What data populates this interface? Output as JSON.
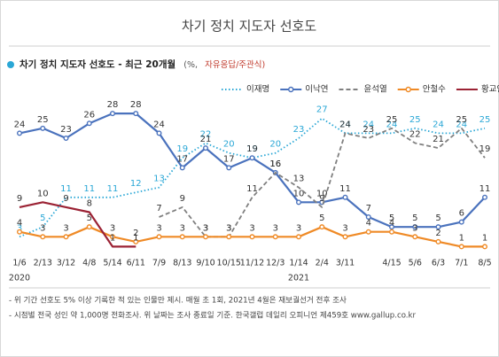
{
  "chart_data": {
    "type": "line",
    "title": "차기 정치 지도자 선호도",
    "subtitle": "차기 정치 지도자 선호도 - 최근 20개월",
    "subtitle_unit": "(%,",
    "subtitle_note": "자유응답/주관식)",
    "categories": [
      "1/6",
      "2/13",
      "3/12",
      "4/8",
      "5/14",
      "6/11",
      "7/9",
      "8/13",
      "9/10",
      "10/15",
      "11/12",
      "12/3",
      "1/14",
      "2/4",
      "3/11",
      null,
      "4/15",
      "5/6",
      "6/3",
      "7/1",
      "8/5"
    ],
    "year_labels": [
      "2020",
      null,
      null,
      null,
      null,
      null,
      null,
      null,
      null,
      null,
      null,
      null,
      "2021",
      null,
      null,
      null,
      null,
      null,
      null,
      null,
      null
    ],
    "ylim": [
      0,
      30
    ],
    "series": [
      {
        "name": "이재명",
        "color": "#2aa7d6",
        "dash": "dotted",
        "markers": false,
        "values": [
          3,
          5,
          11,
          11,
          11,
          12,
          13,
          19,
          22,
          20,
          19,
          20,
          23,
          27,
          24,
          24,
          24,
          25,
          24,
          24,
          25
        ]
      },
      {
        "name": "이낙연",
        "color": "#4a72bd",
        "dash": "solid",
        "markers": true,
        "values": [
          24,
          25,
          23,
          26,
          28,
          28,
          24,
          17,
          21,
          17,
          19,
          16,
          10,
          10,
          11,
          7,
          5,
          5,
          5,
          6,
          11
        ]
      },
      {
        "name": "윤석열",
        "color": "#808080",
        "dash": "dashed",
        "markers": false,
        "values": [
          null,
          null,
          null,
          null,
          null,
          null,
          7,
          9,
          3,
          3,
          11,
          16,
          13,
          9,
          24,
          23,
          25,
          22,
          21,
          25,
          19
        ]
      },
      {
        "name": "안철수",
        "color": "#ef8a26",
        "dash": "solid",
        "markers": true,
        "values": [
          4,
          3,
          3,
          5,
          3,
          2,
          3,
          3,
          3,
          3,
          3,
          3,
          3,
          5,
          3,
          4,
          4,
          3,
          2,
          1,
          1
        ]
      },
      {
        "name": "황교안",
        "color": "#9b2234",
        "dash": "solid",
        "markers": false,
        "values": [
          9,
          10,
          9,
          8,
          1,
          1,
          null,
          null,
          null,
          null,
          null,
          null,
          null,
          null,
          null,
          null,
          null,
          null,
          null,
          null,
          null
        ]
      }
    ],
    "footnotes": [
      "- 위 기간 선호도 5% 이상 기록한 적 있는 인물만 제시. 매월 초 1회, 2021년 4월은 재보궐선거 전후 조사",
      "- 시점별 전국 성인 약 1,000명 전화조사. 위 날짜는 조사 종료일 기준. 한국갤럽 데일리 오피니언 제459호 www.gallup.co.kr"
    ]
  }
}
